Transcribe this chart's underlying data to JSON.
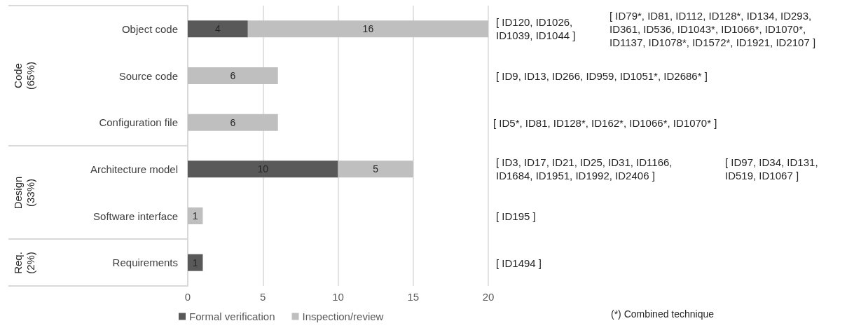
{
  "chart_data": {
    "type": "bar",
    "orientation": "horizontal",
    "stacked": true,
    "categories": [
      "Object code",
      "Source code",
      "Configuration file",
      "Architecture model",
      "Software interface",
      "Requirements"
    ],
    "series": [
      {
        "name": "Formal verification",
        "color": "#595959",
        "values": [
          4,
          null,
          null,
          10,
          null,
          1
        ]
      },
      {
        "name": "Inspection/review",
        "color": "#bfbfbf",
        "values": [
          16,
          6,
          6,
          5,
          1,
          null
        ]
      }
    ],
    "xlim": [
      0,
      20
    ],
    "xticks": [
      0,
      5,
      10,
      15,
      20
    ],
    "grid": "x",
    "legend": "bottom",
    "data_labels": true,
    "annotations": [
      "Code\n(65%)",
      "Design\n(33%)",
      "Req.\n(2%)",
      "[ ID120, ID1026,\nID1039, ID1044 ]",
      "[ ID79*, ID81, ID112, ID128*, ID134, ID293,\nID361, ID536, ID1043*, ID1066*, ID1070*,\nID1137, ID1078*, ID1572*, ID1921, ID2107 ]",
      "[ ID9, ID13, ID266, ID959, ID1051*, ID2686* ]",
      "[  ID5*, ID81, ID128*, ID162*, ID1066*, ID1070* ]",
      "[ ID3, ID17, ID21, ID25, ID31, ID1166,\nID1684, ID1951, ID1992, ID2406 ]",
      "[  ID97, ID34, ID131,\nID519, ID1067 ]",
      "[ ID195 ]",
      "[ ID1494 ]",
      "(*) Combined technique"
    ]
  }
}
